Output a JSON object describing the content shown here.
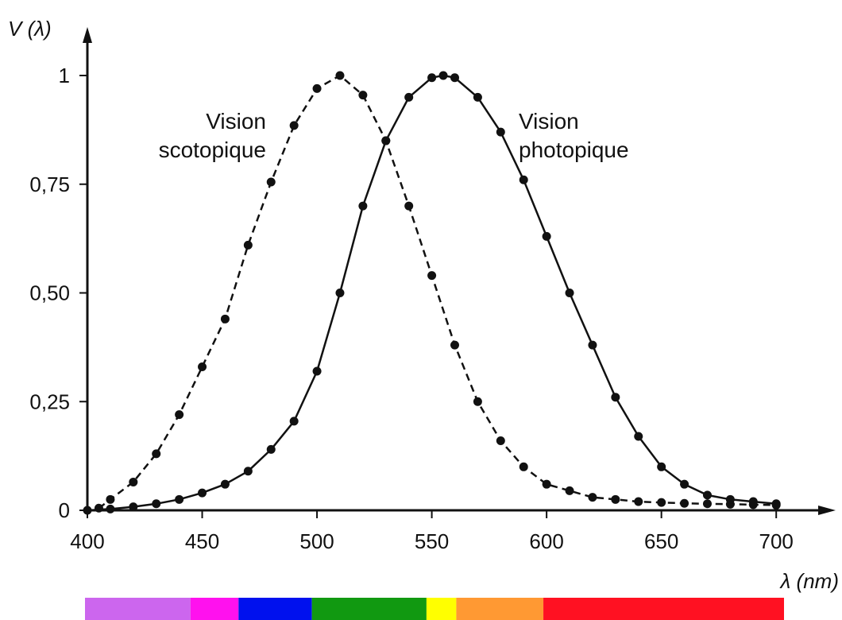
{
  "chart_data": {
    "type": "line",
    "ylabel": "V (λ)",
    "xlabel": "λ (nm)",
    "xlim": [
      400,
      720
    ],
    "ylim": [
      0,
      1
    ],
    "x_ticks": [
      400,
      450,
      500,
      550,
      600,
      650,
      700
    ],
    "x_tick_labels": [
      "400",
      "450",
      "500",
      "550",
      "600",
      "650",
      "700"
    ],
    "y_ticks": [
      0,
      0.25,
      0.5,
      0.75,
      1
    ],
    "y_tick_labels": [
      "0",
      "0,25",
      "0,50",
      "0,75",
      "1"
    ],
    "grid": false,
    "legend": "none",
    "series": [
      {
        "name": "Vision scotopique",
        "style": "dashed",
        "color": "#111111",
        "x": [
          405,
          410,
          420,
          430,
          440,
          450,
          460,
          470,
          480,
          490,
          500,
          510,
          520,
          530,
          540,
          550,
          560,
          570,
          580,
          590,
          600,
          610,
          620,
          630,
          640,
          650,
          660,
          670,
          680,
          690,
          700
        ],
        "y": [
          0.005,
          0.025,
          0.065,
          0.13,
          0.22,
          0.33,
          0.44,
          0.61,
          0.755,
          0.885,
          0.97,
          1.0,
          0.955,
          0.85,
          0.7,
          0.54,
          0.38,
          0.25,
          0.16,
          0.1,
          0.06,
          0.045,
          0.03,
          0.025,
          0.02,
          0.018,
          0.016,
          0.015,
          0.014,
          0.013,
          0.012
        ]
      },
      {
        "name": "Vision photopique",
        "style": "solid",
        "color": "#111111",
        "x": [
          400,
          410,
          420,
          430,
          440,
          450,
          460,
          470,
          480,
          490,
          500,
          510,
          520,
          530,
          540,
          550,
          555,
          560,
          570,
          580,
          590,
          600,
          610,
          620,
          630,
          640,
          650,
          660,
          670,
          680,
          690,
          700
        ],
        "y": [
          0.0,
          0.003,
          0.008,
          0.015,
          0.025,
          0.04,
          0.06,
          0.09,
          0.14,
          0.205,
          0.32,
          0.5,
          0.7,
          0.85,
          0.95,
          0.995,
          1.0,
          0.995,
          0.95,
          0.87,
          0.76,
          0.63,
          0.5,
          0.38,
          0.26,
          0.17,
          0.1,
          0.06,
          0.035,
          0.025,
          0.02,
          0.015
        ]
      }
    ],
    "annotations": [
      {
        "lines": [
          "Vision",
          "scotopique"
        ],
        "align": "right",
        "x": 495,
        "y": 0.82
      },
      {
        "lines": [
          "Vision",
          "photopique"
        ],
        "align": "left",
        "x": 588,
        "y": 0.82
      }
    ],
    "color_band": [
      {
        "color": "#cc66ee",
        "from": 400,
        "to": 446
      },
      {
        "color": "#ff11ee",
        "from": 446,
        "to": 467
      },
      {
        "color": "#0011ee",
        "from": 467,
        "to": 499
      },
      {
        "color": "#119911",
        "from": 499,
        "to": 549
      },
      {
        "color": "#ffff00",
        "from": 549,
        "to": 562
      },
      {
        "color": "#ff9933",
        "from": 562,
        "to": 600
      },
      {
        "color": "#ff1122",
        "from": 600,
        "to": 705
      }
    ]
  }
}
